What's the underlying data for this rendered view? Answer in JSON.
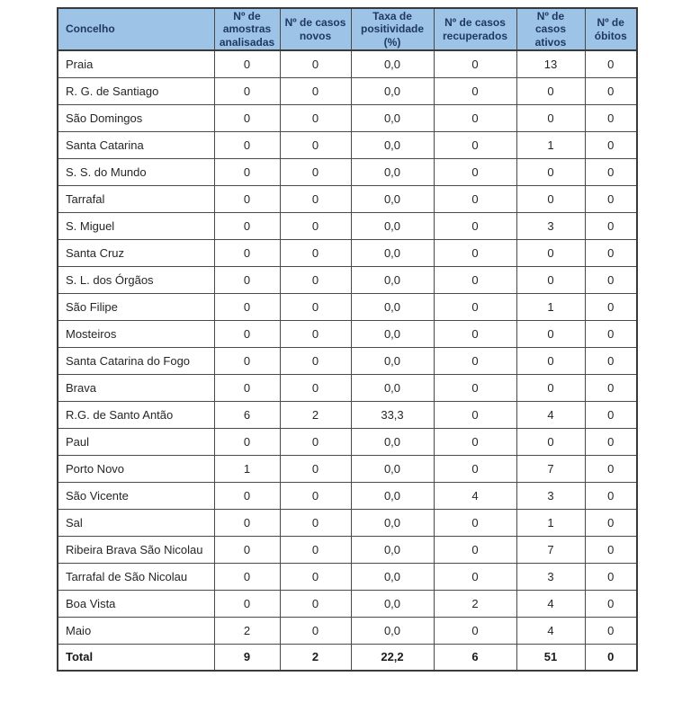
{
  "colors": {
    "header_bg": "#9DC3E6",
    "header_text": "#1F3864",
    "grid_border": "#4a4a4a",
    "body_text": "#262626",
    "page_bg": "#ffffff"
  },
  "table": {
    "columns": [
      {
        "label": "Concelho"
      },
      {
        "label": "Nº de amostras analisadas"
      },
      {
        "label": "Nº de casos novos"
      },
      {
        "label": "Taxa de positividade (%)"
      },
      {
        "label": "Nº de casos recuperados"
      },
      {
        "label": "Nº de casos ativos"
      },
      {
        "label": "Nº de óbitos"
      }
    ],
    "rows": [
      {
        "concelho": "Praia",
        "values": [
          "0",
          "0",
          "0,0",
          "0",
          "13",
          "0"
        ],
        "bold": false
      },
      {
        "concelho": "R. G. de Santiago",
        "values": [
          "0",
          "0",
          "0,0",
          "0",
          "0",
          "0"
        ],
        "bold": false
      },
      {
        "concelho": "São Domingos",
        "values": [
          "0",
          "0",
          "0,0",
          "0",
          "0",
          "0"
        ],
        "bold": false
      },
      {
        "concelho": "Santa Catarina",
        "values": [
          "0",
          "0",
          "0,0",
          "0",
          "1",
          "0"
        ],
        "bold": false
      },
      {
        "concelho": "S. S. do Mundo",
        "values": [
          "0",
          "0",
          "0,0",
          "0",
          "0",
          "0"
        ],
        "bold": false
      },
      {
        "concelho": "Tarrafal",
        "values": [
          "0",
          "0",
          "0,0",
          "0",
          "0",
          "0"
        ],
        "bold": false
      },
      {
        "concelho": "S. Miguel",
        "values": [
          "0",
          "0",
          "0,0",
          "0",
          "3",
          "0"
        ],
        "bold": false
      },
      {
        "concelho": "Santa Cruz",
        "values": [
          "0",
          "0",
          "0,0",
          "0",
          "0",
          "0"
        ],
        "bold": false
      },
      {
        "concelho": "S. L. dos Órgãos",
        "values": [
          "0",
          "0",
          "0,0",
          "0",
          "0",
          "0"
        ],
        "bold": false
      },
      {
        "concelho": "São Filipe",
        "values": [
          "0",
          "0",
          "0,0",
          "0",
          "1",
          "0"
        ],
        "bold": false
      },
      {
        "concelho": "Mosteiros",
        "values": [
          "0",
          "0",
          "0,0",
          "0",
          "0",
          "0"
        ],
        "bold": false
      },
      {
        "concelho": "Santa Catarina do Fogo",
        "values": [
          "0",
          "0",
          "0,0",
          "0",
          "0",
          "0"
        ],
        "bold": false
      },
      {
        "concelho": "Brava",
        "values": [
          "0",
          "0",
          "0,0",
          "0",
          "0",
          "0"
        ],
        "bold": false
      },
      {
        "concelho": "R.G. de Santo Antão",
        "values": [
          "6",
          "2",
          "33,3",
          "0",
          "4",
          "0"
        ],
        "bold": false
      },
      {
        "concelho": "Paul",
        "values": [
          "0",
          "0",
          "0,0",
          "0",
          "0",
          "0"
        ],
        "bold": false
      },
      {
        "concelho": "Porto Novo",
        "values": [
          "1",
          "0",
          "0,0",
          "0",
          "7",
          "0"
        ],
        "bold": false
      },
      {
        "concelho": "São Vicente",
        "values": [
          "0",
          "0",
          "0,0",
          "4",
          "3",
          "0"
        ],
        "bold": false
      },
      {
        "concelho": "Sal",
        "values": [
          "0",
          "0",
          "0,0",
          "0",
          "1",
          "0"
        ],
        "bold": false
      },
      {
        "concelho": "Ribeira Brava São Nicolau",
        "values": [
          "0",
          "0",
          "0,0",
          "0",
          "7",
          "0"
        ],
        "bold": false
      },
      {
        "concelho": "Tarrafal de São Nicolau",
        "values": [
          "0",
          "0",
          "0,0",
          "0",
          "3",
          "0"
        ],
        "bold": false
      },
      {
        "concelho": "Boa Vista",
        "values": [
          "0",
          "0",
          "0,0",
          "2",
          "4",
          "0"
        ],
        "bold": false
      },
      {
        "concelho": "Maio",
        "values": [
          "2",
          "0",
          "0,0",
          "0",
          "4",
          "0"
        ],
        "bold": false
      },
      {
        "concelho": "Total",
        "values": [
          "9",
          "2",
          "22,2",
          "6",
          "51",
          "0"
        ],
        "bold": true
      }
    ]
  }
}
